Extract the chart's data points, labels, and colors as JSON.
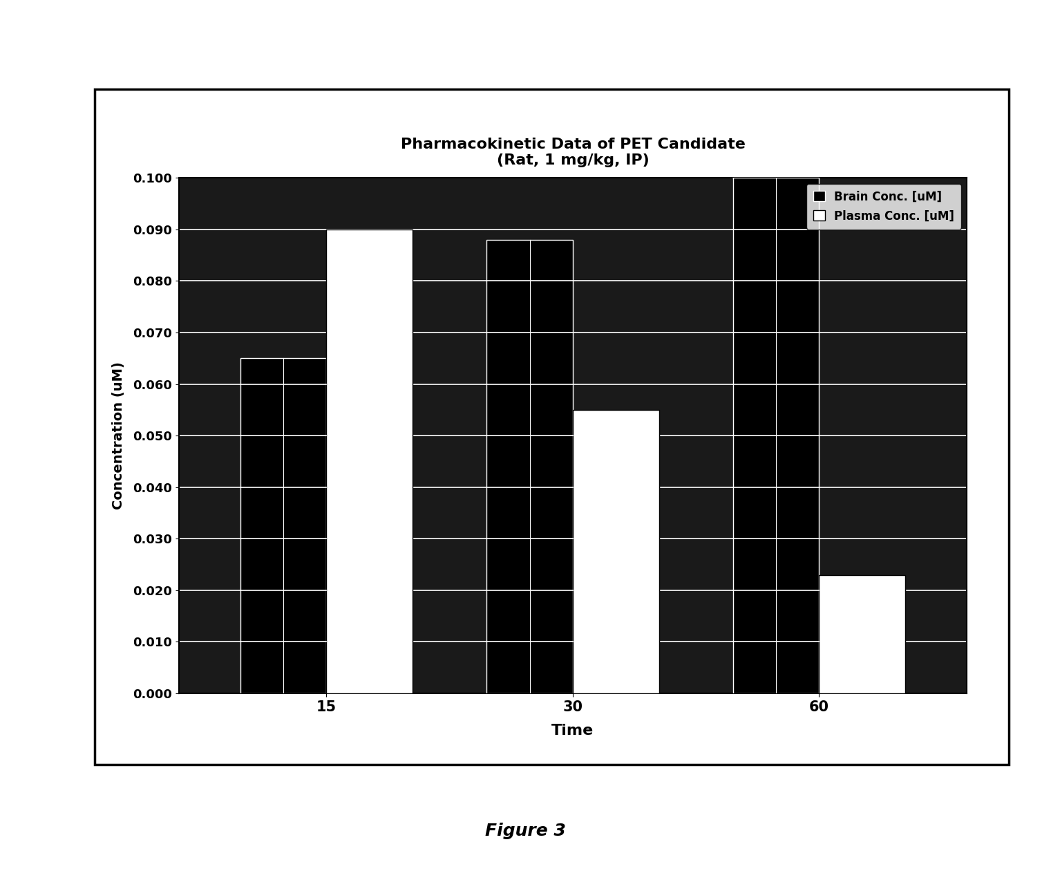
{
  "title_line1": "Pharmacokinetic Data of PET Candidate",
  "title_line2": "(Rat, 1 mg/kg, IP)",
  "xlabel": "Time",
  "ylabel": "Concentration (uM)",
  "time_points": [
    15,
    30,
    60
  ],
  "brain_values": [
    0.065,
    0.088,
    0.1
  ],
  "plasma_values": [
    0.09,
    0.055,
    0.023
  ],
  "ylim_min": 0.0,
  "ylim_max": 0.1,
  "yticks": [
    0.0,
    0.01,
    0.02,
    0.03,
    0.04,
    0.05,
    0.06,
    0.07,
    0.08,
    0.09,
    0.1
  ],
  "brain_color": "#000000",
  "plasma_color": "#ffffff",
  "bar_width": 0.35,
  "legend_brain": "Brain Conc. [uM]",
  "legend_plasma": "Plasma Conc. [uM]",
  "figure_caption": "Figure 3",
  "background_color": "#ffffff",
  "plot_bg_color": "#1a1a1a",
  "white_line_color": "#ffffff",
  "title_fontsize": 16,
  "axis_label_fontsize": 14,
  "tick_fontsize": 13,
  "caption_fontsize": 18
}
